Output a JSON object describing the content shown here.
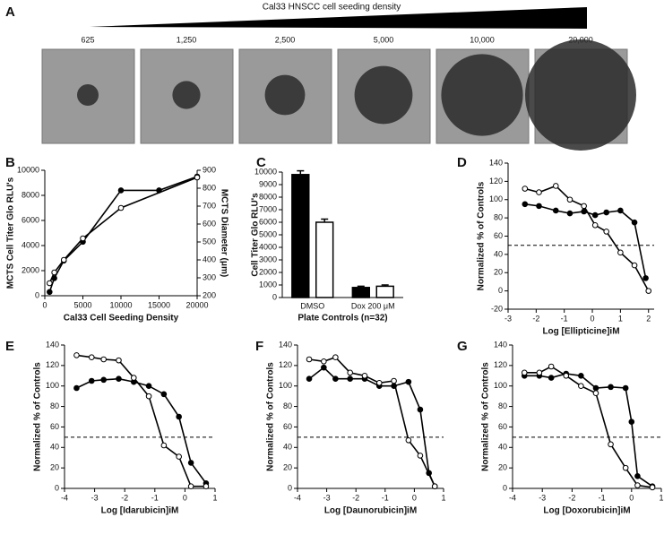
{
  "panel_a": {
    "panel": "A",
    "title": "Cal33 HNSCC cell seeding density",
    "labels": [
      "625",
      "1,250",
      "2,500",
      "5,000",
      "10,000",
      "20,000"
    ]
  },
  "chart_data": [
    {
      "type": "line",
      "panel": "B",
      "xlabel": "Cal33 Cell Seeding Density",
      "ylabel": "MCTS Cell Titer Glo RLU's",
      "y2label": "MCTS Diameter (μm)",
      "xlim": [
        0,
        20000
      ],
      "xticks": [
        0,
        5000,
        10000,
        15000,
        20000
      ],
      "ylim": [
        0,
        10000
      ],
      "yticks": [
        0,
        2000,
        4000,
        6000,
        8000,
        10000
      ],
      "y2lim": [
        200,
        900
      ],
      "y2ticks": [
        200,
        300,
        400,
        500,
        600,
        700,
        800,
        900
      ],
      "series": [
        {
          "color": "#000000",
          "x": [
            625,
            1250,
            2500,
            5000,
            10000,
            15000,
            20000
          ],
          "values": [
            300,
            1400,
            2800,
            4300,
            8400,
            8400,
            9500
          ]
        },
        {
          "color": "#ffffff",
          "axis": "y2",
          "x": [
            625,
            1250,
            2500,
            5000,
            10000,
            20000
          ],
          "values": [
            270,
            330,
            400,
            520,
            690,
            860
          ]
        }
      ]
    },
    {
      "type": "bar",
      "panel": "C",
      "xlabel": "Plate Controls (n=32)",
      "ylabel": "Cell Titer Glo RLU's",
      "categories": [
        "DMSO",
        "Dox 200 μM"
      ],
      "ylim": [
        0,
        10000
      ],
      "yticks": [
        0,
        1000,
        2000,
        3000,
        4000,
        5000,
        6000,
        7000,
        8000,
        9000,
        10000
      ],
      "series": [
        {
          "color": "#000000",
          "values": [
            9800,
            800
          ],
          "errors": [
            300,
            100
          ]
        },
        {
          "color": "#ffffff",
          "values": [
            6000,
            900
          ],
          "errors": [
            250,
            100
          ]
        }
      ]
    },
    {
      "type": "scatter",
      "panel": "D",
      "xlabel": "Log [Ellipticine]iM",
      "ylabel": "Normalized % of Controls",
      "hline": 50,
      "xlim": [
        -3,
        2.2
      ],
      "xticks": [
        -3,
        -2,
        -1,
        0,
        1,
        2
      ],
      "ylim": [
        -20,
        140
      ],
      "yticks": [
        -20,
        0,
        20,
        40,
        60,
        80,
        100,
        120,
        140
      ],
      "series": [
        {
          "color": "#000000",
          "x": [
            -2.4,
            -1.9,
            -1.3,
            -0.8,
            -0.3,
            0.1,
            0.5,
            1.0,
            1.5,
            1.9
          ],
          "values": [
            95,
            93,
            88,
            85,
            87,
            83,
            86,
            88,
            75,
            14
          ]
        },
        {
          "color": "#ffffff",
          "x": [
            -2.4,
            -1.9,
            -1.3,
            -0.8,
            -0.3,
            0.1,
            0.5,
            1.0,
            1.5,
            2.0
          ],
          "values": [
            112,
            108,
            115,
            100,
            93,
            72,
            65,
            42,
            28,
            0
          ]
        }
      ]
    },
    {
      "type": "scatter",
      "panel": "E",
      "xlabel": "Log [Idarubicin]iM",
      "ylabel": "Normalized % of Controls",
      "hline": 50,
      "xlim": [
        -4,
        1
      ],
      "xticks": [
        -4,
        -3,
        -2,
        -1,
        0,
        1
      ],
      "ylim": [
        0,
        140
      ],
      "yticks": [
        0,
        20,
        40,
        60,
        80,
        100,
        120,
        140
      ],
      "series": [
        {
          "color": "#000000",
          "x": [
            -3.6,
            -3.1,
            -2.7,
            -2.2,
            -1.7,
            -1.2,
            -0.7,
            -0.2,
            0.2,
            0.7
          ],
          "values": [
            98,
            105,
            106,
            107,
            104,
            100,
            92,
            70,
            25,
            5
          ]
        },
        {
          "color": "#ffffff",
          "x": [
            -3.6,
            -3.1,
            -2.7,
            -2.2,
            -1.7,
            -1.2,
            -0.7,
            -0.2,
            0.2,
            0.7
          ],
          "values": [
            130,
            128,
            126,
            125,
            108,
            90,
            42,
            31,
            2,
            2
          ]
        }
      ]
    },
    {
      "type": "scatter",
      "panel": "F",
      "xlabel": "Log [Daunorubicin]iM",
      "ylabel": "Normalized % of Controls",
      "hline": 50,
      "xlim": [
        -4,
        1
      ],
      "xticks": [
        -4,
        -3,
        -2,
        -1,
        0,
        1
      ],
      "ylim": [
        0,
        140
      ],
      "yticks": [
        0,
        20,
        40,
        60,
        80,
        100,
        120,
        140
      ],
      "series": [
        {
          "color": "#000000",
          "x": [
            -3.6,
            -3.1,
            -2.7,
            -2.2,
            -1.7,
            -1.2,
            -0.7,
            -0.2,
            0.2,
            0.5,
            0.7
          ],
          "values": [
            107,
            118,
            107,
            107,
            107,
            100,
            100,
            104,
            77,
            15,
            2
          ]
        },
        {
          "color": "#ffffff",
          "x": [
            -3.6,
            -3.1,
            -2.7,
            -2.2,
            -1.7,
            -1.2,
            -0.7,
            -0.2,
            0.2,
            0.7
          ],
          "values": [
            126,
            124,
            128,
            113,
            110,
            103,
            105,
            47,
            32,
            2
          ]
        }
      ]
    },
    {
      "type": "scatter",
      "panel": "G",
      "xlabel": "Log [Doxorubicin]iM",
      "ylabel": "Normalized % of Controls",
      "hline": 50,
      "xlim": [
        -4,
        1
      ],
      "xticks": [
        -4,
        -3,
        -2,
        -1,
        0,
        1
      ],
      "ylim": [
        0,
        140
      ],
      "yticks": [
        0,
        20,
        40,
        60,
        80,
        100,
        120,
        140
      ],
      "series": [
        {
          "color": "#000000",
          "x": [
            -3.6,
            -3.1,
            -2.7,
            -2.2,
            -1.7,
            -1.2,
            -0.7,
            -0.2,
            0,
            0.2,
            0.7
          ],
          "values": [
            110,
            110,
            108,
            112,
            110,
            98,
            99,
            98,
            65,
            12,
            2
          ]
        },
        {
          "color": "#ffffff",
          "x": [
            -3.6,
            -3.1,
            -2.7,
            -2.2,
            -1.7,
            -1.2,
            -0.7,
            -0.2,
            0.2,
            0.7
          ],
          "values": [
            113,
            113,
            119,
            110,
            100,
            93,
            43,
            20,
            3,
            1
          ]
        }
      ]
    }
  ]
}
